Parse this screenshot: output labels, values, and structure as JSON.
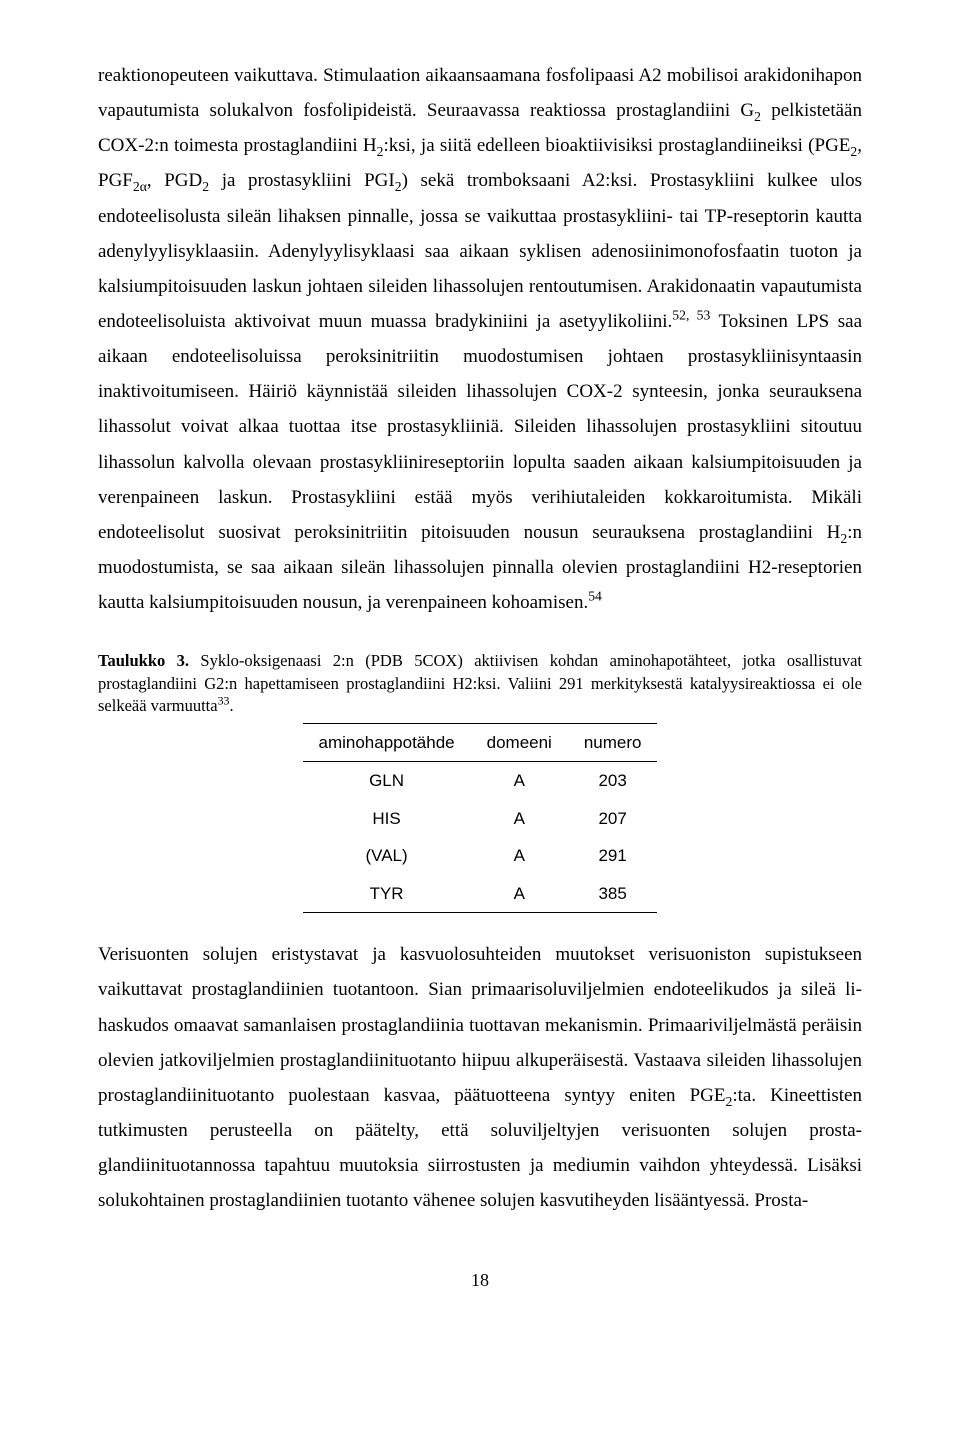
{
  "para1_parts": [
    {
      "t": "reaktionopeuteen vaikuttava. Stimulaation aikaansaamana fosfolipaasi A2 mobilisoi araki­donihapon vapautumista solukalvon fosfolipideistä. Seuraavassa reaktiossa prostaglandiini G"
    },
    {
      "t": "2",
      "cls": "sub"
    },
    {
      "t": " pelkistetään COX-2:n toimesta prostaglandiini H"
    },
    {
      "t": "2",
      "cls": "sub"
    },
    {
      "t": ":ksi, ja siitä edelleen bioaktiivisiksi prosta­glandiineiksi (PGE"
    },
    {
      "t": "2",
      "cls": "sub"
    },
    {
      "t": ", PGF"
    },
    {
      "t": "2α",
      "cls": "sub"
    },
    {
      "t": ", PGD"
    },
    {
      "t": "2",
      "cls": "sub"
    },
    {
      "t": " ja prostasykliini PGI"
    },
    {
      "t": "2",
      "cls": "sub"
    },
    {
      "t": ") sekä tromboksaani A2:ksi. Prostasyk­liini kulkee ulos endoteelisolusta sileän lihaksen pinnalle, jossa se vaikuttaa prostasykliini- tai TP-reseptorin kautta adenylyylisyklaasiin. Adenylyylisyklaasi saa aikaan syklisen adenosiini­monofosfaatin tuoton ja kalsiumpitoisuuden laskun johtaen sileiden lihassolujen rentoutumisen. Arakidonaatin vapautumista endoteelisoluista aktivoivat muun muassa bradykiniini ja asetyyli­koliini."
    },
    {
      "t": "52, 53",
      "cls": "sup"
    },
    {
      "t": " Toksinen LPS saa aikaan endoteelisoluissa peroksinitriitin muodostumisen johtaen prostasykliinisyntaasin inaktivoitumiseen. Häiriö käynnistää sileiden lihassolujen COX-2 syn­teesin, jonka seurauksena lihassolut voivat alkaa tuottaa itse prostasykliiniä. Sileiden lihassolu­jen prostasykliini sitoutuu lihassolun kalvolla olevaan prostasykliinireseptoriin lopulta saaden aikaan kalsiumpitoisuuden ja verenpaineen laskun. Prostasykliini estää myös verihiutaleiden kokkaroitumista. Mikäli endoteelisolut suosivat peroksinitriitin pitoisuuden nousun seurauksena prostaglandiini H"
    },
    {
      "t": "2",
      "cls": "sub"
    },
    {
      "t": ":n muodostumista, se saa aikaan sileän lihassolujen pinnalla olevien prosta­glandiini H2-reseptorien kautta kalsiumpitoisuuden nousun, ja verenpaineen kohoamisen."
    },
    {
      "t": "54",
      "cls": "sup"
    }
  ],
  "tableCaption_parts": [
    {
      "t": "Taulukko 3.",
      "cls": "bold"
    },
    {
      "t": " Syklo-oksigenaasi 2:n (PDB 5COX) aktiivisen kohdan aminohapotähteet, jotka osallistuvat prostaglandiini G2:n hapettamiseen prostaglandiini H2:ksi. Valiini 291 merkityksestä katalyysireaktiossa ei ole selkeää varmuutta"
    },
    {
      "t": "33",
      "cls": "sup"
    },
    {
      "t": "."
    }
  ],
  "table": {
    "headers": [
      "aminohappotähde",
      "domeeni",
      "numero"
    ],
    "rows": [
      [
        "GLN",
        "A",
        "203"
      ],
      [
        "HIS",
        "A",
        "207"
      ],
      [
        "(VAL)",
        "A",
        "291"
      ],
      [
        "TYR",
        "A",
        "385"
      ]
    ]
  },
  "para2_parts": [
    {
      "t": "Verisuonten solujen eristystavat ja kasvuolosuhteiden muutokset verisuoniston supistukseen vaikuttavat prostaglandiinien tuotantoon. Sian primaarisoluviljelmien endoteelikudos ja sileä li­haskudos omaavat samanlaisen prostaglandiinia tuottavan mekanismin. Primaariviljelmästä pe­räisin olevien jatkoviljelmien prostaglandiinituotanto hiipuu alkuperäisestä. Vastaava sileiden lihassolujen prostaglandiinituotanto puolestaan kasvaa, päätuotteena syntyy eniten PGE"
    },
    {
      "t": "2",
      "cls": "sub"
    },
    {
      "t": ":ta. Ki­neettisten tutkimusten perusteella on päätelty, että soluviljeltyjen verisuonten solujen prosta­glandiinituotannossa tapahtuu muutoksia siirrostusten ja mediumin vaihdon yhteydessä. Lisäksi solukohtainen prostaglandiinien tuotanto vähenee solujen kasvutiheyden lisääntyessä. Prosta-"
    }
  ],
  "pageNumber": "18"
}
